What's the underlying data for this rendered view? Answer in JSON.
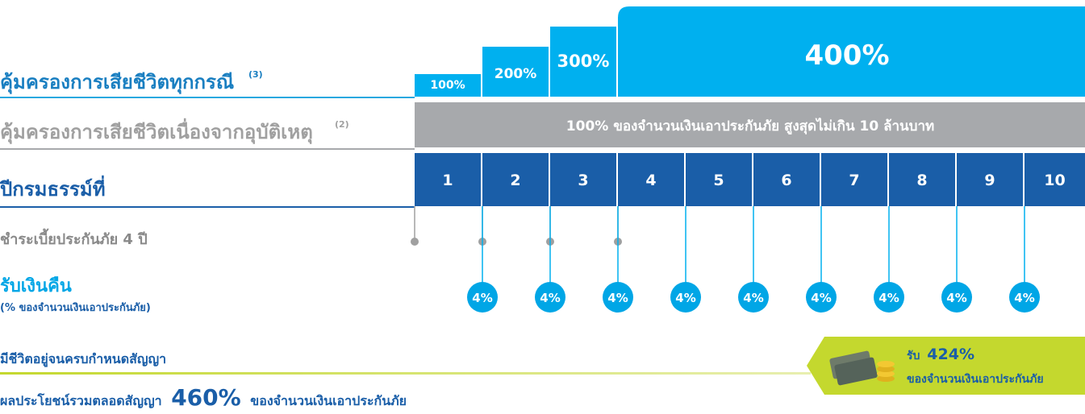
{
  "coverage_all": {
    "label": "คุ้มครองการเสียชีวิตทุกกรณี",
    "note": "(3)",
    "steps": [
      "100%",
      "200%",
      "300%",
      "400%"
    ]
  },
  "coverage_accident": {
    "label": "คุ้มครองการเสียชีวิตเนื่องจากอุบัติเหตุ",
    "note": "(2)",
    "text": "100% ของจำนวนเงินเอาประกันภัย สูงสุดไม่เกิน 10 ล้านบาท"
  },
  "policy_years": {
    "label": "ปีกรมธรรม์ที่",
    "years": [
      "1",
      "2",
      "3",
      "4",
      "5",
      "6",
      "7",
      "8",
      "9",
      "10"
    ]
  },
  "premium": {
    "label": "ชำระเบี้ยประกันภัย 4 ปี"
  },
  "cashback": {
    "label": "รับเงินคืน",
    "sublabel": "(% ของจำนวนเงินเอาประกันภัย)",
    "values": [
      "4%",
      "4%",
      "4%",
      "4%",
      "4%",
      "4%",
      "4%",
      "4%",
      "4%"
    ]
  },
  "maturity": {
    "label": "มีชีวิตอยู่จนครบกำหนดสัญญา",
    "badge_prefix": "รับ",
    "badge_value": "424%",
    "badge_text": "ของจำนวนเงินเอาประกันภัย"
  },
  "total": {
    "prefix": "ผลประโยชน์รวมตลอดสัญญา",
    "value": "460%",
    "suffix": "ของจำนวนเงินเอาประกันภัย"
  }
}
